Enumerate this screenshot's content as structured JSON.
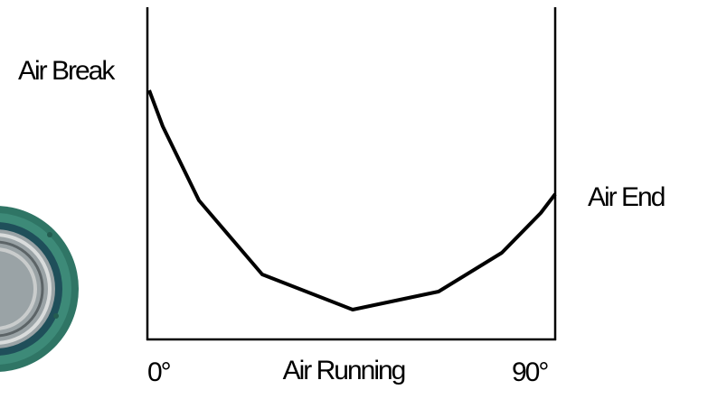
{
  "labels": {
    "top_left": "Air Break",
    "right": "Air End",
    "x_start": "0°",
    "x_middle": "Air Running",
    "x_end": "90°"
  }
}
